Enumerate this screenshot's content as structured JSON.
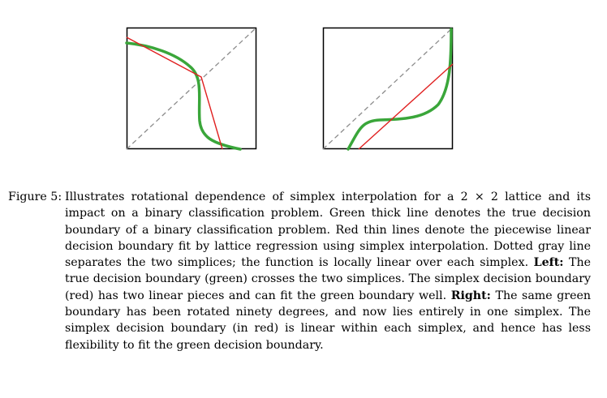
{
  "figure": {
    "label": "Figure 5:",
    "caption_part1": "Illustrates rotational dependence of simplex interpolation for a 2 × 2 lattice and its impact on a binary classification problem. Green thick line denotes the true decision boundary of a binary classification problem. Red thin lines denote the piecewise linear decision boundary fit by lattice regression using simplex interpolation. Dotted gray line separates the two simplices; the function is locally linear over each simplex.",
    "left_label": "Left:",
    "caption_part2": "The true decision boundary (green) crosses the two simplices. The simplex decision boundary (red) has two linear pieces and can fit the green boundary well.",
    "right_label": "Right:",
    "caption_part3": "The same green boundary has been rotated ninety degrees, and now lies entirely in one simplex. The simplex decision boundary (in red) is linear within each simplex, and hence has less flexibility to fit the green decision boundary."
  },
  "colors": {
    "true_boundary": "#3aa63a",
    "fitted_boundary": "#e02020",
    "simplex_divider": "#8c8c8c",
    "frame": "#000000"
  },
  "panels": [
    {
      "position": "left",
      "description_key": "true boundary crosses both simplices"
    },
    {
      "position": "right",
      "description_key": "true boundary within one simplex"
    }
  ]
}
